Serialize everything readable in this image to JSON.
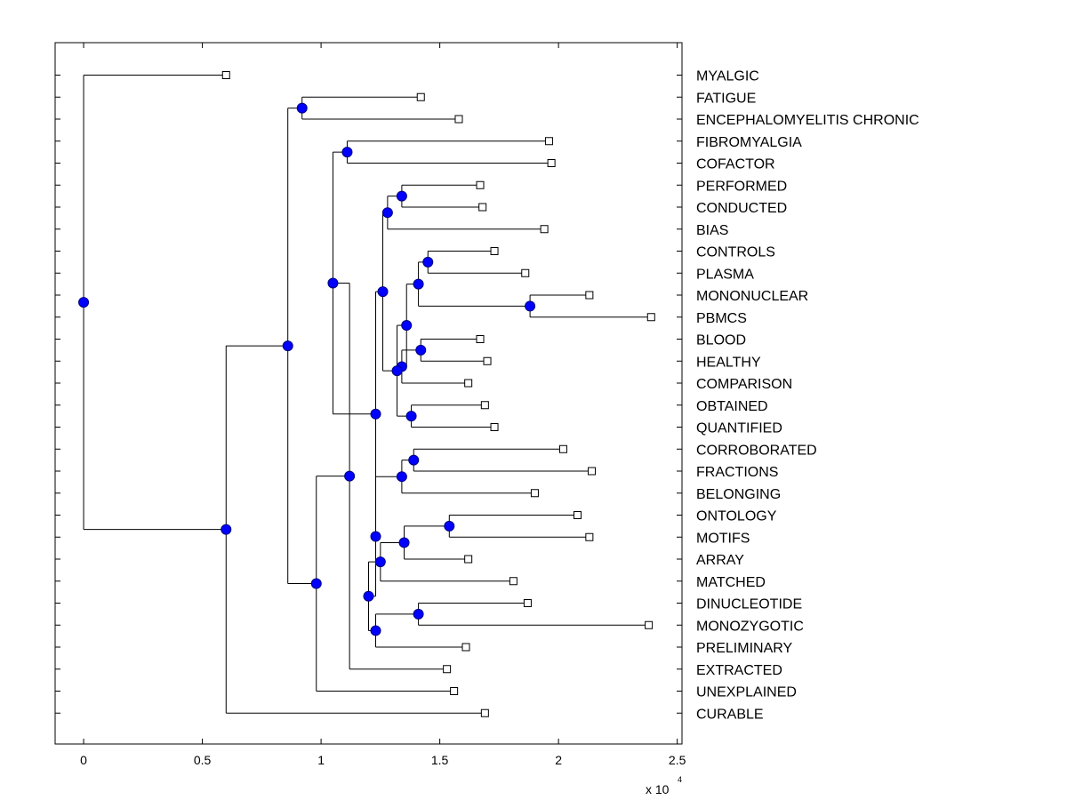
{
  "chart_data": {
    "type": "dendrogram",
    "orientation": "horizontal",
    "xlim": [
      -0.12,
      2.52
    ],
    "xticks": [
      0,
      0.5,
      1,
      1.5,
      2,
      2.5
    ],
    "xtick_labels": [
      "0",
      "0.5",
      "1",
      "1.5",
      "2",
      "2.5"
    ],
    "x_multiplier_base": "x 10",
    "x_multiplier_exp": "4",
    "leaves": [
      {
        "label": "MYALGIC",
        "x": 0.6
      },
      {
        "label": "FATIGUE",
        "x": 1.42
      },
      {
        "label": "ENCEPHALOMYELITIS CHRONIC",
        "x": 1.58
      },
      {
        "label": "FIBROMYALGIA",
        "x": 1.96
      },
      {
        "label": "COFACTOR",
        "x": 1.97
      },
      {
        "label": "PERFORMED",
        "x": 1.67
      },
      {
        "label": "CONDUCTED",
        "x": 1.68
      },
      {
        "label": "BIAS",
        "x": 1.94
      },
      {
        "label": "CONTROLS",
        "x": 1.73
      },
      {
        "label": "PLASMA",
        "x": 1.86
      },
      {
        "label": "MONONUCLEAR",
        "x": 2.13
      },
      {
        "label": "PBMCS",
        "x": 2.39
      },
      {
        "label": "BLOOD",
        "x": 1.67
      },
      {
        "label": "HEALTHY",
        "x": 1.7
      },
      {
        "label": "COMPARISON",
        "x": 1.62
      },
      {
        "label": "OBTAINED",
        "x": 1.69
      },
      {
        "label": "QUANTIFIED",
        "x": 1.73
      },
      {
        "label": "CORROBORATED",
        "x": 2.02
      },
      {
        "label": "FRACTIONS",
        "x": 2.14
      },
      {
        "label": "BELONGING",
        "x": 1.9
      },
      {
        "label": "ONTOLOGY",
        "x": 2.08
      },
      {
        "label": "MOTIFS",
        "x": 2.13
      },
      {
        "label": "ARRAY",
        "x": 1.62
      },
      {
        "label": "MATCHED",
        "x": 1.81
      },
      {
        "label": "DINUCLEOTIDE",
        "x": 1.87
      },
      {
        "label": "MONOZYGOTIC",
        "x": 2.38
      },
      {
        "label": "PRELIMINARY",
        "x": 1.61
      },
      {
        "label": "EXTRACTED",
        "x": 1.53
      },
      {
        "label": "UNEXPLAINED",
        "x": 1.56
      },
      {
        "label": "CURABLE",
        "x": 1.69
      }
    ],
    "merges": [
      {
        "id": "a",
        "x": 0.92,
        "children": [
          "L1",
          "L2"
        ]
      },
      {
        "id": "b",
        "x": 1.11,
        "children": [
          "L3",
          "L4"
        ]
      },
      {
        "id": "c",
        "x": 1.34,
        "children": [
          "L5",
          "L6"
        ]
      },
      {
        "id": "d",
        "x": 1.28,
        "children": [
          "c",
          "L7"
        ]
      },
      {
        "id": "e",
        "x": 1.45,
        "children": [
          "L8",
          "L9"
        ]
      },
      {
        "id": "f",
        "x": 1.88,
        "children": [
          "L10",
          "L11"
        ]
      },
      {
        "id": "g",
        "x": 1.41,
        "children": [
          "e",
          "f"
        ]
      },
      {
        "id": "h",
        "x": 1.42,
        "children": [
          "L12",
          "L13"
        ]
      },
      {
        "id": "i",
        "x": 1.34,
        "children": [
          "h",
          "L14"
        ]
      },
      {
        "id": "j",
        "x": 1.36,
        "children": [
          "g",
          "i"
        ]
      },
      {
        "id": "k",
        "x": 1.38,
        "children": [
          "L15",
          "L16"
        ]
      },
      {
        "id": "l",
        "x": 1.32,
        "children": [
          "j",
          "k"
        ]
      },
      {
        "id": "m",
        "x": 1.26,
        "children": [
          "d",
          "l"
        ]
      },
      {
        "id": "n",
        "x": 1.39,
        "children": [
          "L17",
          "L18"
        ]
      },
      {
        "id": "o",
        "x": 1.34,
        "children": [
          "n",
          "L19"
        ]
      },
      {
        "id": "p",
        "x": 1.54,
        "children": [
          "L20",
          "L21"
        ]
      },
      {
        "id": "q",
        "x": 1.35,
        "children": [
          "p",
          "L22"
        ]
      },
      {
        "id": "r",
        "x": 1.25,
        "children": [
          "q",
          "L23"
        ]
      },
      {
        "id": "s",
        "x": 1.41,
        "children": [
          "L24",
          "L25"
        ]
      },
      {
        "id": "t",
        "x": 1.23,
        "children": [
          "s",
          "L26"
        ]
      },
      {
        "id": "u",
        "x": 1.2,
        "children": [
          "r",
          "t"
        ]
      },
      {
        "id": "v",
        "x": 1.23,
        "children": [
          "o",
          "u"
        ]
      },
      {
        "id": "w",
        "x": 1.23,
        "children": [
          "m",
          "v"
        ]
      },
      {
        "id": "x",
        "x": 1.05,
        "children": [
          "b",
          "w"
        ]
      },
      {
        "id": "y",
        "x": 1.12,
        "children": [
          "x",
          "L27"
        ]
      },
      {
        "id": "z",
        "x": 0.98,
        "children": [
          "y",
          "L28"
        ]
      },
      {
        "id": "aa",
        "x": 0.86,
        "children": [
          "a",
          "z"
        ]
      },
      {
        "id": "bb",
        "x": 0.6,
        "children": [
          "aa",
          "L29"
        ]
      },
      {
        "id": "root",
        "x": 0.0,
        "children": [
          "L0",
          "bb"
        ]
      }
    ],
    "colors": {
      "node_fill": "#0000ff",
      "node_stroke": "#000080",
      "line": "#000000"
    }
  }
}
